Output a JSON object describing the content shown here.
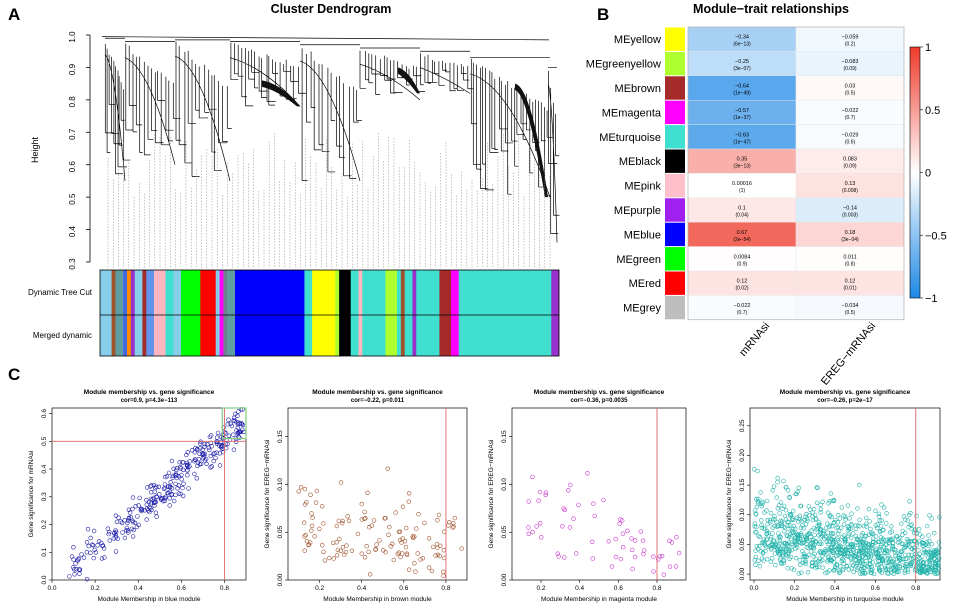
{
  "panel_labels": {
    "a": "A",
    "b": "B",
    "c": "C"
  },
  "chart_data": [
    {
      "type": "dendrogram",
      "title": "Cluster Dendrogram",
      "ylabel": "Height",
      "ylim": [
        0.3,
        1.0
      ],
      "yticks": [
        "0.3",
        "0.4",
        "0.5",
        "0.6",
        "0.7",
        "0.8",
        "0.9",
        "1.0"
      ],
      "color_rows": [
        "Dynamic Tree Cut",
        "Merged dynamic"
      ],
      "module_segments": [
        {
          "color": "#87CEEB",
          "width": 3
        },
        {
          "color": "#A0522D",
          "width": 1
        },
        {
          "color": "#5F9EA0",
          "width": 2
        },
        {
          "color": "#4169E1",
          "width": 1
        },
        {
          "color": "#FF8C00",
          "width": 1
        },
        {
          "color": "#9932CC",
          "width": 1
        },
        {
          "color": "#87CEEB",
          "width": 2
        },
        {
          "color": "#A52A2A",
          "width": 1
        },
        {
          "color": "#6495ED",
          "width": 2
        },
        {
          "color": "#FFB6C1",
          "width": 3
        },
        {
          "color": "#40E0D0",
          "width": 2
        },
        {
          "color": "#87CEEB",
          "width": 2
        },
        {
          "color": "#00FF00",
          "width": 5
        },
        {
          "color": "#FF0000",
          "width": 4
        },
        {
          "color": "#87CEEB",
          "width": 1
        },
        {
          "color": "#FF00FF",
          "width": 1
        },
        {
          "color": "#708090",
          "width": 1
        },
        {
          "color": "#5F9EA0",
          "width": 2
        },
        {
          "color": "#0000FF",
          "width": 18
        },
        {
          "color": "#40E0D0",
          "width": 2
        },
        {
          "color": "#FFFF00",
          "width": 6
        },
        {
          "color": "#ADFF2F",
          "width": 1
        },
        {
          "color": "#000000",
          "width": 3
        },
        {
          "color": "#40E0D0",
          "width": 2
        },
        {
          "color": "#FFB6C1",
          "width": 1
        },
        {
          "color": "#40E0D0",
          "width": 6
        },
        {
          "color": "#ADFF2F",
          "width": 3
        },
        {
          "color": "#40E0D0",
          "width": 1
        },
        {
          "color": "#A0522D",
          "width": 1
        },
        {
          "color": "#40E0D0",
          "width": 2
        },
        {
          "color": "#9932CC",
          "width": 1
        },
        {
          "color": "#40E0D0",
          "width": 6
        },
        {
          "color": "#A52A2A",
          "width": 3
        },
        {
          "color": "#FF00FF",
          "width": 2
        },
        {
          "color": "#40E0D0",
          "width": 24
        },
        {
          "color": "#9932CC",
          "width": 2
        }
      ]
    },
    {
      "type": "heatmap",
      "title": "Module−trait relationships",
      "traits": [
        "mRNAsi",
        "EREG−mRNAsi"
      ],
      "colorbar_ticks": [
        "1",
        "0.5",
        "0",
        "−0.5",
        "−1"
      ],
      "colorbar_range": [
        -1,
        1
      ],
      "modules": [
        {
          "name": "MEyellow",
          "color": "#FFFF00",
          "cells": [
            {
              "r": -0.34,
              "v": "−0.34",
              "p": "(6e−13)"
            },
            {
              "r": -0.059,
              "v": "−0.059",
              "p": "(0.2)"
            }
          ]
        },
        {
          "name": "MEgreenyellow",
          "color": "#ADFF2F",
          "cells": [
            {
              "r": -0.25,
              "v": "−0.25",
              "p": "(3e−07)"
            },
            {
              "r": -0.083,
              "v": "−0.083",
              "p": "(0.09)"
            }
          ]
        },
        {
          "name": "MEbrown",
          "color": "#A52A2A",
          "cells": [
            {
              "r": -0.64,
              "v": "−0.64",
              "p": "(1e−49)"
            },
            {
              "r": 0.03,
              "v": "0.03",
              "p": "(0.5)"
            }
          ]
        },
        {
          "name": "MEmagenta",
          "color": "#FF00FF",
          "cells": [
            {
              "r": -0.57,
              "v": "−0.57",
              "p": "(1e−37)"
            },
            {
              "r": -0.022,
              "v": "−0.022",
              "p": "(0.7)"
            }
          ]
        },
        {
          "name": "MEturquoise",
          "color": "#40E0D0",
          "cells": [
            {
              "r": -0.63,
              "v": "−0.63",
              "p": "(1e−47)"
            },
            {
              "r": -0.029,
              "v": "−0.029",
              "p": "(0.6)"
            }
          ]
        },
        {
          "name": "MEblack",
          "color": "#000000",
          "cells": [
            {
              "r": 0.35,
              "v": "0.35",
              "p": "(3e−13)"
            },
            {
              "r": 0.083,
              "v": "0.083",
              "p": "(0.09)"
            }
          ]
        },
        {
          "name": "MEpink",
          "color": "#FFC0CB",
          "cells": [
            {
              "r": 0.00016,
              "v": "0.00016",
              "p": "(1)"
            },
            {
              "r": 0.13,
              "v": "0.13",
              "p": "(0.008)"
            }
          ]
        },
        {
          "name": "MEpurple",
          "color": "#A020F0",
          "cells": [
            {
              "r": 0.1,
              "v": "0.1",
              "p": "(0.04)"
            },
            {
              "r": -0.14,
              "v": "−0.14",
              "p": "(0.003)"
            }
          ]
        },
        {
          "name": "MEblue",
          "color": "#0000FF",
          "cells": [
            {
              "r": 0.67,
              "v": "0.67",
              "p": "(2e−54)"
            },
            {
              "r": 0.18,
              "v": "0.18",
              "p": "(3e−04)"
            }
          ]
        },
        {
          "name": "MEgreen",
          "color": "#00FF00",
          "cells": [
            {
              "r": 0.0084,
              "v": "0.0084",
              "p": "(0.9)"
            },
            {
              "r": 0.011,
              "v": "0.011",
              "p": "(0.8)"
            }
          ]
        },
        {
          "name": "MEred",
          "color": "#FF0000",
          "cells": [
            {
              "r": 0.12,
              "v": "0.12",
              "p": "(0.02)"
            },
            {
              "r": 0.12,
              "v": "0.12",
              "p": "(0.01)"
            }
          ]
        },
        {
          "name": "MEgrey",
          "color": "#BEBEBE",
          "cells": [
            {
              "r": -0.022,
              "v": "−0.022",
              "p": "(0.7)"
            },
            {
              "r": -0.034,
              "v": "−0.034",
              "p": "(0.5)"
            }
          ]
        }
      ]
    },
    {
      "type": "scatter",
      "title": "Module membership vs. gene significance",
      "subtitle": "cor=0.9, p=4.3e−113",
      "xlabel": "Module Membership in blue module",
      "ylabel": "Gene significance for  mRNAsi",
      "xlim": [
        0.0,
        0.9
      ],
      "ylim": [
        0.0,
        0.62
      ],
      "xticks": [
        "0.0",
        "0.2",
        "0.4",
        "0.6",
        "0.8"
      ],
      "yticks": [
        "0.0",
        "0.1",
        "0.2",
        "0.3",
        "0.4",
        "0.5",
        "0.6"
      ],
      "point_color": "#1a1aa8",
      "vline": 0.8,
      "hline": 0.5,
      "highlight_box": {
        "x0": 0.79,
        "x1": 0.9,
        "y0": 0.51,
        "y1": 0.62
      },
      "n_points": 300,
      "trend": {
        "slope": 0.66,
        "intercept": -0.02,
        "noise": 0.065
      },
      "x_range": [
        0.05,
        0.89
      ],
      "seed": 11
    },
    {
      "type": "scatter",
      "title": "Module membership vs. gene significance",
      "subtitle": "cor=−0.22, p=0.011",
      "xlabel": "Module Membership in brown module",
      "ylabel": "Gene significance for  EREG−mRNAsi",
      "xlim": [
        0.05,
        0.9
      ],
      "ylim": [
        0.0,
        0.18
      ],
      "xticks": [
        "0.2",
        "0.4",
        "0.6",
        "0.8"
      ],
      "yticks": [
        "0.00",
        "0.05",
        "0.10",
        "0.15"
      ],
      "point_color": "#a0522d",
      "vline": 0.8,
      "n_points": 130,
      "trend": {
        "slope": -0.035,
        "intercept": 0.065,
        "noise": 0.04
      },
      "x_range": [
        0.1,
        0.88
      ],
      "seed": 23
    },
    {
      "type": "scatter",
      "title": "Module membership vs. gene significance",
      "subtitle": "cor=−0.36, p=0.0035",
      "xlabel": "Module Membership in magenta module",
      "ylabel": "Gene significance for  EREG−mRNAsi",
      "xlim": [
        0.05,
        0.95
      ],
      "ylim": [
        0.0,
        0.18
      ],
      "xticks": [
        "0.2",
        "0.4",
        "0.6",
        "0.8"
      ],
      "yticks": [
        "0.00",
        "0.05",
        "0.10",
        "0.15"
      ],
      "point_color": "#cc33cc",
      "vline": 0.8,
      "n_points": 62,
      "trend": {
        "slope": -0.06,
        "intercept": 0.08,
        "noise": 0.035
      },
      "x_range": [
        0.12,
        0.92
      ],
      "seed": 37
    },
    {
      "type": "scatter",
      "title": "Module membership vs. gene significance",
      "subtitle": "cor=−0.26, p=2e−17",
      "xlabel": "Module Membership in turquoise module",
      "ylabel": "Gene significance for  EREG−mRNAsi",
      "xlim": [
        -0.02,
        0.92
      ],
      "ylim": [
        -0.01,
        0.28
      ],
      "xticks": [
        "0.0",
        "0.2",
        "0.4",
        "0.6",
        "0.8"
      ],
      "yticks": [
        "0.00",
        "0.05",
        "0.10",
        "0.15",
        "0.20",
        "0.25"
      ],
      "point_color": "#20b2aa",
      "vline": 0.8,
      "n_points": 1000,
      "trend": {
        "slope": -0.06,
        "intercept": 0.075,
        "noise": 0.055
      },
      "x_range": [
        0.0,
        0.92
      ],
      "seed": 51
    }
  ]
}
